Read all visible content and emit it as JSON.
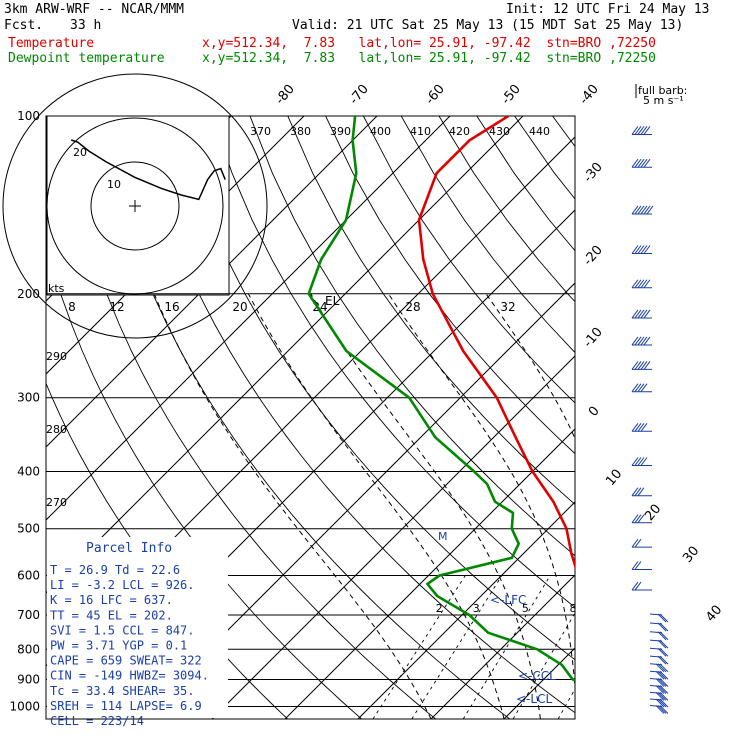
{
  "header": {
    "model": "3km ARW-WRF -- NCAR/MMM",
    "init": "Init: 12 UTC Fri 24 May 13",
    "fcst_label": "Fcst.",
    "fcst_value": "33 h",
    "valid": "Valid: 21 UTC Sat 25 May 13 (15 MDT Sat 25 May 13)",
    "temp_label": "Temperature",
    "temp_loc": "x,y=512.34,  7.83   lat,lon= 25.91, -97.42  stn=BRO ,72250",
    "dew_label": "Dewpoint temperature",
    "dew_loc": "x,y=512.34,  7.83   lat,lon= 25.91, -97.42  stn=BRO ,72250"
  },
  "colors": {
    "temperature": "#e00000",
    "dewpoint": "#008800",
    "info": "#1a3fa8",
    "barb": "#1a3fa8"
  },
  "chart_data": {
    "type": "line",
    "title": "",
    "ylabel": "",
    "y_scale": "log-pressure",
    "pressure_ticks": [
      100,
      200,
      300,
      400,
      500,
      600,
      700,
      800,
      900,
      1000
    ],
    "temp_ticks": [
      -80,
      -70,
      -60,
      -50,
      -40,
      -30,
      -20,
      -10,
      0,
      10,
      20,
      30,
      40
    ],
    "theta_labels": [
      "370",
      "380",
      "390",
      "400",
      "410",
      "420",
      "430",
      "440"
    ],
    "theta_side_labels": [
      "290",
      "280",
      "270"
    ],
    "mixing_ratio_labels": [
      "2",
      "3",
      "5",
      "8",
      "12",
      "20"
    ],
    "barb_label": "full barb:",
    "barb_unit": "5 m s⁻¹",
    "markers": {
      "el": "EL",
      "lfc": "<-LFC",
      "ccl": "<-CCL",
      "lcl": "<-LCL",
      "m": "M"
    },
    "series": [
      {
        "name": "Temperature",
        "p": [
          1000,
          975,
          950,
          925,
          900,
          850,
          800,
          750,
          700,
          650,
          600,
          550,
          500,
          450,
          400,
          350,
          300,
          250,
          200,
          175,
          150,
          125,
          110,
          100
        ],
        "value": [
          26.9,
          25.0,
          23.0,
          21.5,
          20.5,
          17.0,
          14.2,
          11.0,
          8.5,
          4.5,
          0.5,
          -3.5,
          -7.5,
          -13.0,
          -20.0,
          -27.0,
          -35.0,
          -46.0,
          -58.0,
          -64.0,
          -70.0,
          -74.0,
          -74.0,
          -72.0
        ]
      },
      {
        "name": "Dewpoint temperature",
        "p": [
          1000,
          975,
          950,
          925,
          900,
          850,
          800,
          750,
          700,
          650,
          620,
          600,
          560,
          530,
          500,
          470,
          450,
          420,
          400,
          350,
          300,
          250,
          200,
          175,
          150,
          125,
          110,
          100
        ],
        "value": [
          22.6,
          21.8,
          20.5,
          18.5,
          14.0,
          10.5,
          5.0,
          -4.0,
          -9.0,
          -16.0,
          -19.0,
          -18.5,
          -11.0,
          -12.0,
          -15.0,
          -17.0,
          -21.0,
          -24.5,
          -28.0,
          -38.0,
          -47.0,
          -62.0,
          -75.0,
          -78.0,
          -80.0,
          -85.0,
          -90.0,
          -93.0
        ]
      }
    ],
    "hodograph": {
      "rings": [
        "10",
        "20"
      ],
      "kts_label": "kts",
      "speed_labels": [
        "8",
        "12",
        "16",
        "20",
        "24",
        "28",
        "32"
      ],
      "trace_u": [
        20.5,
        19.5,
        18.0,
        16.5,
        14.5,
        10.5,
        6.0,
        0.0,
        -6.5,
        -10.5,
        -13.0,
        -14.5
      ],
      "trace_v": [
        6.0,
        8.5,
        8.0,
        6.0,
        1.5,
        2.5,
        4.0,
        6.5,
        10.0,
        12.5,
        14.5,
        15.0
      ]
    },
    "wind_barbs": {
      "p": [
        1000,
        975,
        950,
        925,
        900,
        875,
        850,
        825,
        800,
        775,
        750,
        725,
        700,
        650,
        600,
        550,
        500,
        450,
        400,
        350,
        300,
        275,
        250,
        225,
        200,
        175,
        150,
        125,
        110
      ],
      "spd": [
        8,
        8,
        9,
        9,
        9,
        8,
        8,
        7,
        7,
        6,
        6,
        5,
        5,
        5,
        6,
        7,
        8,
        10,
        11,
        12,
        13,
        14,
        14,
        15,
        15,
        16,
        17,
        16,
        15
      ]
    }
  },
  "parcel_info": {
    "title": "Parcel Info",
    "rows": [
      [
        "T    =   26.9  Td =  22.6",
        ""
      ],
      [
        "LI   =   -3.2  LCL =  926.",
        ""
      ],
      [
        "K    =     16  LFC =  637.",
        ""
      ],
      [
        "TT   =     45  EL  =  202.",
        ""
      ],
      [
        "SVI  =    1.5  CCL =  847.",
        ""
      ],
      [
        "PW   =   3.71  YGP =   0.1",
        ""
      ],
      [
        "CAPE =    659  SWEAT=  322",
        ""
      ],
      [
        "CIN  =   -149  HWBZ= 3094.",
        ""
      ],
      [
        "Tc   =   33.4  SHEAR=  35.",
        ""
      ],
      [
        "SREH =    114  LAPSE=  6.9",
        ""
      ],
      [
        "CELL = 223/14",
        ""
      ]
    ]
  }
}
